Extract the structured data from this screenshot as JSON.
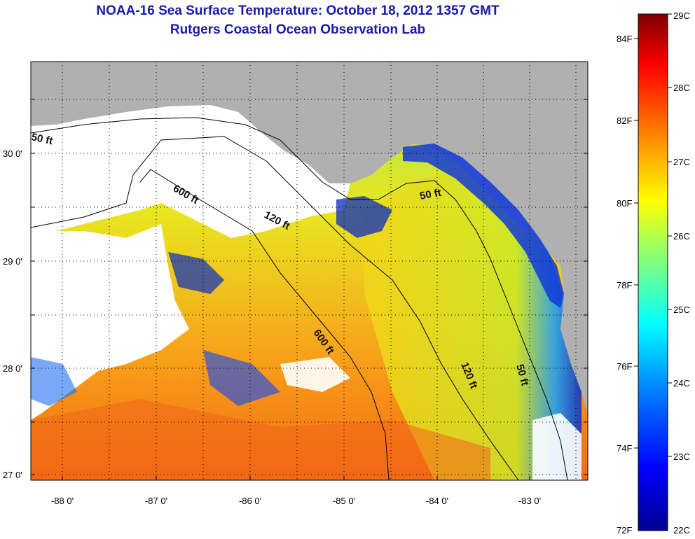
{
  "title": {
    "line1": "NOAA-16 Sea Surface Temperature:  October 18, 2012 1357 GMT",
    "line2": "Rutgers Coastal Ocean Observation Lab"
  },
  "map": {
    "latitude_ticks": [
      {
        "label": "30 0'"
      },
      {
        "label": "29 0'"
      },
      {
        "label": "28 0'"
      },
      {
        "label": "27 0'"
      }
    ],
    "longitude_ticks": [
      {
        "label": "-88 0'"
      },
      {
        "label": "-87 0'"
      },
      {
        "label": "-86 0'"
      },
      {
        "label": "-85 0'"
      },
      {
        "label": "-84 0'"
      },
      {
        "label": "-83 0'"
      }
    ],
    "contour_labels": [
      "50 ft",
      "600 ft",
      "120 ft",
      "50 ft",
      "600 ft",
      "120 ft",
      "50 ft"
    ],
    "colors": {
      "land": "#b0b0b0",
      "cloud": "#ffffff",
      "grid": "#000000"
    }
  },
  "colorbar": {
    "celsius_labels": [
      "29C",
      "28C",
      "27C",
      "26C",
      "25C",
      "24C",
      "23C",
      "22C"
    ],
    "fahrenheit_labels": [
      "84F",
      "82F",
      "80F",
      "78F",
      "76F",
      "74F",
      "72F"
    ],
    "range_celsius": [
      22,
      29
    ],
    "colors": [
      "#00008f",
      "#0000ff",
      "#007fff",
      "#00ffff",
      "#7fff7f",
      "#ffff00",
      "#ff7f00",
      "#ff0000",
      "#7f0000"
    ]
  }
}
